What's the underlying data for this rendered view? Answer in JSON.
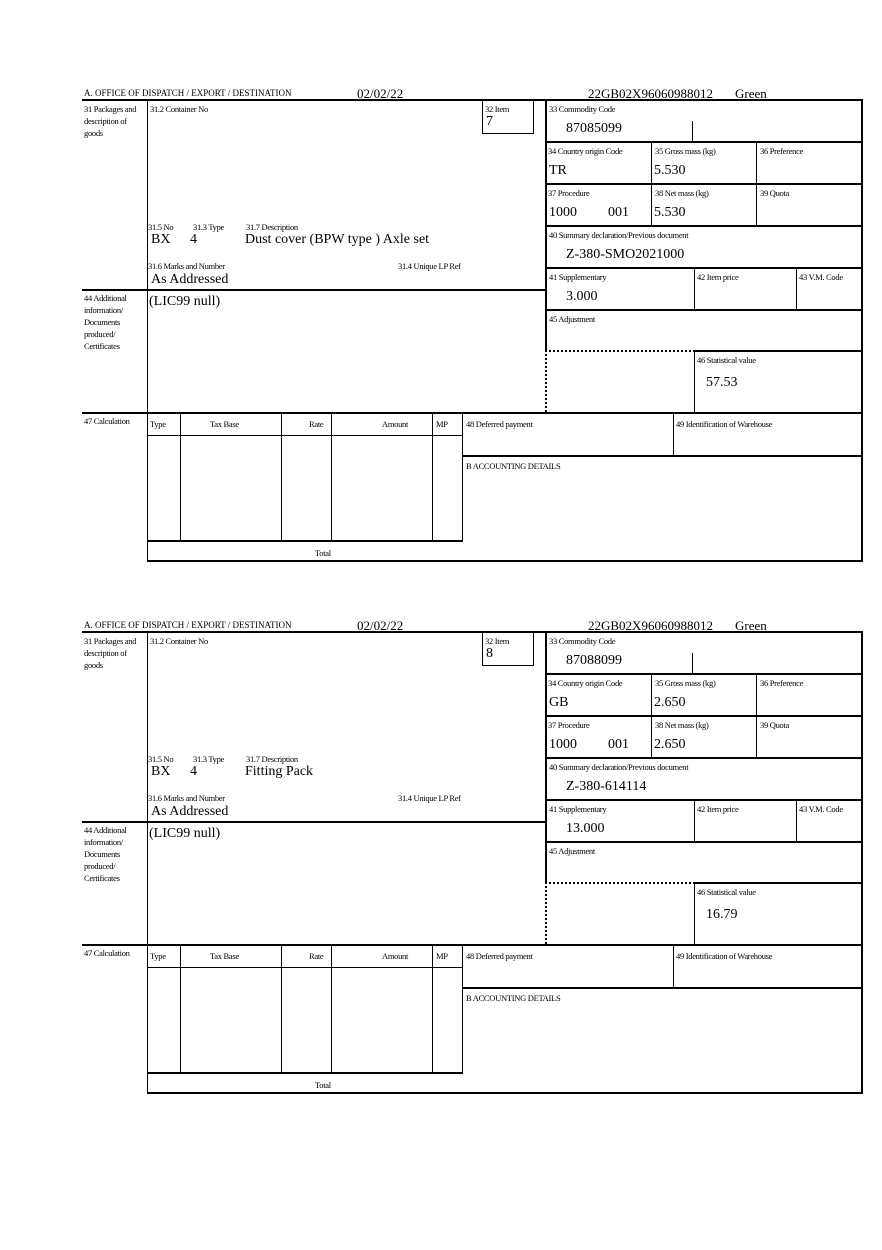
{
  "labels": {
    "office": "A. OFFICE OF DISPATCH / EXPORT / DESTINATION",
    "box31": "31 Packages and description of goods",
    "box31_2": "31.2 Container No",
    "box32": "32 Item",
    "box33": "33 Commodity Code",
    "box34": "34 Country origin Code",
    "box35": "35 Gross mass (kg)",
    "box36": "36 Preference",
    "box37": "37 Procedure",
    "box38": "38 Net mass (kg)",
    "box39": "39 Quota",
    "box40": "40 Summary declaration/Previous document",
    "box41": "41 Supplementary",
    "box42": "42 Item price",
    "box43": "43 V.M. Code",
    "box44": "44 Additional information/ Documents produced/ Certificates",
    "box45": "45 Adjustment",
    "box46": "46 Statistical value",
    "box31_5": "31.5 No",
    "box31_3": "31.3 Type",
    "box31_7": "31.7 Description",
    "box31_6": "31.6 Marks and Number",
    "box31_4": "31.4 Unique LP Ref",
    "box47": "47 Calculation",
    "col_type": "Type",
    "col_taxbase": "Tax Base",
    "col_rate": "Rate",
    "col_amount": "Amount",
    "col_mp": "MP",
    "box48": "48 Deferred payment",
    "box49": "49 Identification of Warehouse",
    "accounting": "B ACCOUNTING DETAILS",
    "total": "Total"
  },
  "forms": [
    {
      "date": "02/02/22",
      "reference": "22GB02X96060988012",
      "route": "Green",
      "item": "7",
      "commodity_code": "87085099",
      "country_origin": "TR",
      "gross_mass": "5.530",
      "procedure": "1000",
      "procedure_add": "001",
      "net_mass": "5.530",
      "previous_document": "Z-380-SMO2021000",
      "supplementary": "3.000",
      "statistical_value": "57.53",
      "package_kind": "BX",
      "package_count": "4",
      "description": "Dust cover (BPW type ) Axle set",
      "marks": "As Addressed",
      "additional_info": "(LIC99 null)"
    },
    {
      "date": "02/02/22",
      "reference": "22GB02X96060988012",
      "route": "Green",
      "item": "8",
      "commodity_code": "87088099",
      "country_origin": "GB",
      "gross_mass": "2.650",
      "procedure": "1000",
      "procedure_add": "001",
      "net_mass": "2.650",
      "previous_document": "Z-380-614114",
      "supplementary": "13.000",
      "statistical_value": "16.79",
      "package_kind": "BX",
      "package_count": "4",
      "description": "Fitting Pack",
      "marks": "As Addressed",
      "additional_info": "(LIC99 null)"
    }
  ]
}
